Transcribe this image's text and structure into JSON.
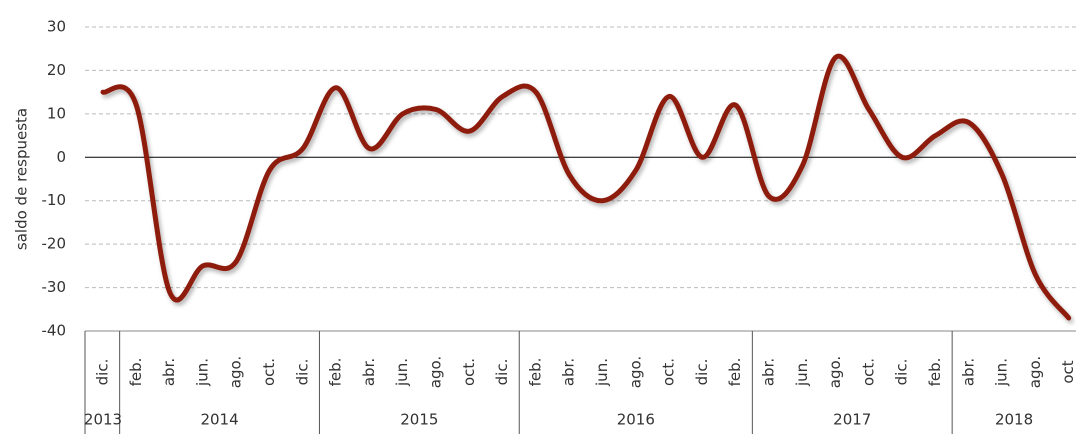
{
  "chart_data": {
    "type": "line",
    "y_label": "saldo de respuesta",
    "groups": [
      {
        "year": "2013",
        "months": [
          "dic."
        ]
      },
      {
        "year": "2014",
        "months": [
          "feb.",
          "abr.",
          "jun.",
          "ago.",
          "oct.",
          "dic."
        ]
      },
      {
        "year": "2015",
        "months": [
          "feb.",
          "abr.",
          "jun.",
          "ago.",
          "oct.",
          "dic."
        ]
      },
      {
        "year": "2016",
        "months": [
          "feb.",
          "abr.",
          "jun.",
          "ago.",
          "oct.",
          "dic.",
          "feb."
        ]
      },
      {
        "year": "2017",
        "months": [
          "abr.",
          "jun.",
          "ago.",
          "oct.",
          "dic.",
          "feb."
        ]
      },
      {
        "year": "2018",
        "months": [
          "abr.",
          "jun.",
          "ago.",
          "oct"
        ]
      }
    ],
    "values": [
      15,
      12,
      -31,
      -25,
      -24,
      -3,
      2,
      16,
      2,
      10,
      11,
      6,
      14,
      15,
      -4,
      -10,
      -3,
      14,
      0,
      12,
      -9,
      -2,
      23,
      11,
      0,
      5,
      8,
      -4,
      -27,
      -37
    ],
    "color": "#8e1b10",
    "ylim": [
      -40,
      30
    ],
    "yticks": [
      -40,
      -30,
      -20,
      -10,
      0,
      10,
      20,
      30
    ],
    "grid": true
  }
}
